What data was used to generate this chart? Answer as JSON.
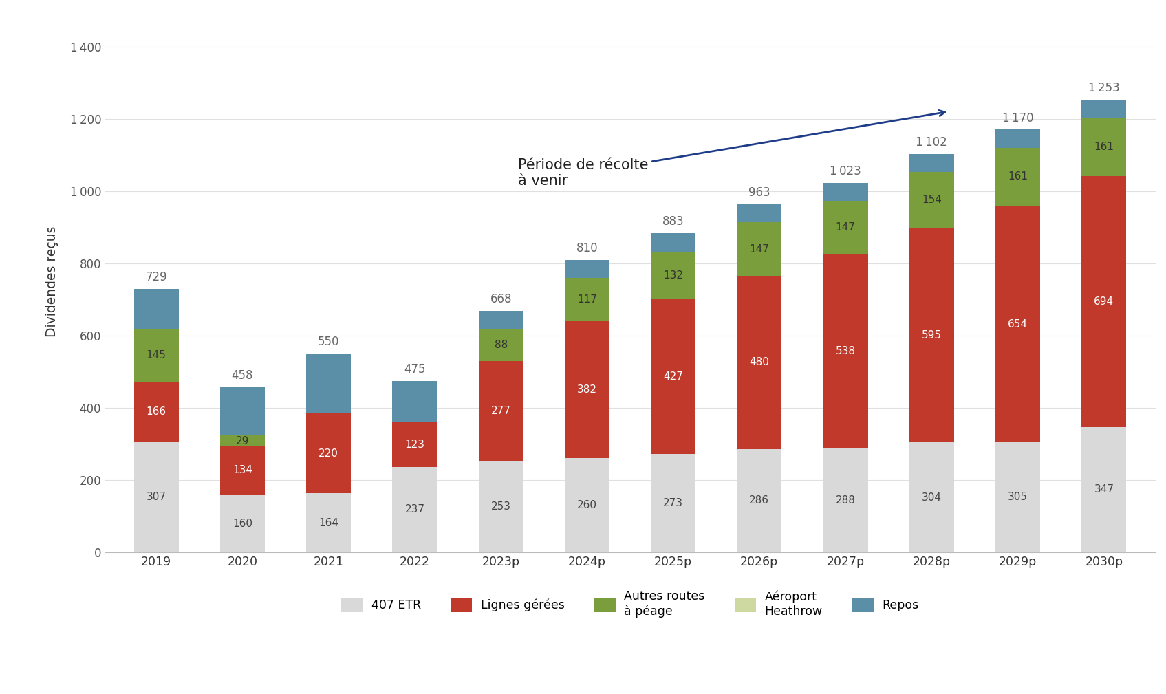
{
  "categories": [
    "2019",
    "2020",
    "2021",
    "2022",
    "2023p",
    "2024p",
    "2025p",
    "2026p",
    "2027p",
    "2028p",
    "2029p",
    "2030p"
  ],
  "segments_ordered": [
    "407 ETR",
    "Lignes gérées",
    "Autres routes à péage",
    "Aéroport Heathrow",
    "Repos"
  ],
  "segments": {
    "407 ETR": [
      307,
      160,
      164,
      237,
      253,
      260,
      273,
      286,
      288,
      304,
      305,
      347
    ],
    "Lignes gérées": [
      166,
      134,
      220,
      123,
      277,
      382,
      427,
      480,
      538,
      595,
      654,
      694
    ],
    "Autres routes à péage": [
      145,
      29,
      0,
      0,
      88,
      117,
      132,
      147,
      147,
      154,
      161,
      161
    ],
    "Aéroport Heathrow": [
      0,
      0,
      0,
      0,
      0,
      0,
      0,
      0,
      0,
      0,
      0,
      0
    ],
    "Repos": [
      111,
      135,
      166,
      115,
      50,
      51,
      51,
      50,
      50,
      49,
      50,
      51
    ]
  },
  "totals": [
    729,
    458,
    550,
    475,
    668,
    810,
    883,
    963,
    1023,
    1102,
    1170,
    1253
  ],
  "colors": {
    "407 ETR": "#d9d9d9",
    "Lignes gérées": "#c0392b",
    "Autres routes à péage": "#7a9e3b",
    "Aéroport Heathrow": "#cdd9a0",
    "Repos": "#5b8fa8"
  },
  "ylabel": "Dividendes reçus",
  "ylim": [
    0,
    1500
  ],
  "yticks": [
    0,
    200,
    400,
    600,
    800,
    1000,
    1200,
    1400
  ],
  "annotation_text": "Période de récolte\nà venir",
  "background_color": "#ffffff",
  "legend_labels": [
    "407 ETR",
    "Lignes gérées",
    "Autres routes\nà péage",
    "Aéroport\nHeathrow",
    "Repos"
  ]
}
